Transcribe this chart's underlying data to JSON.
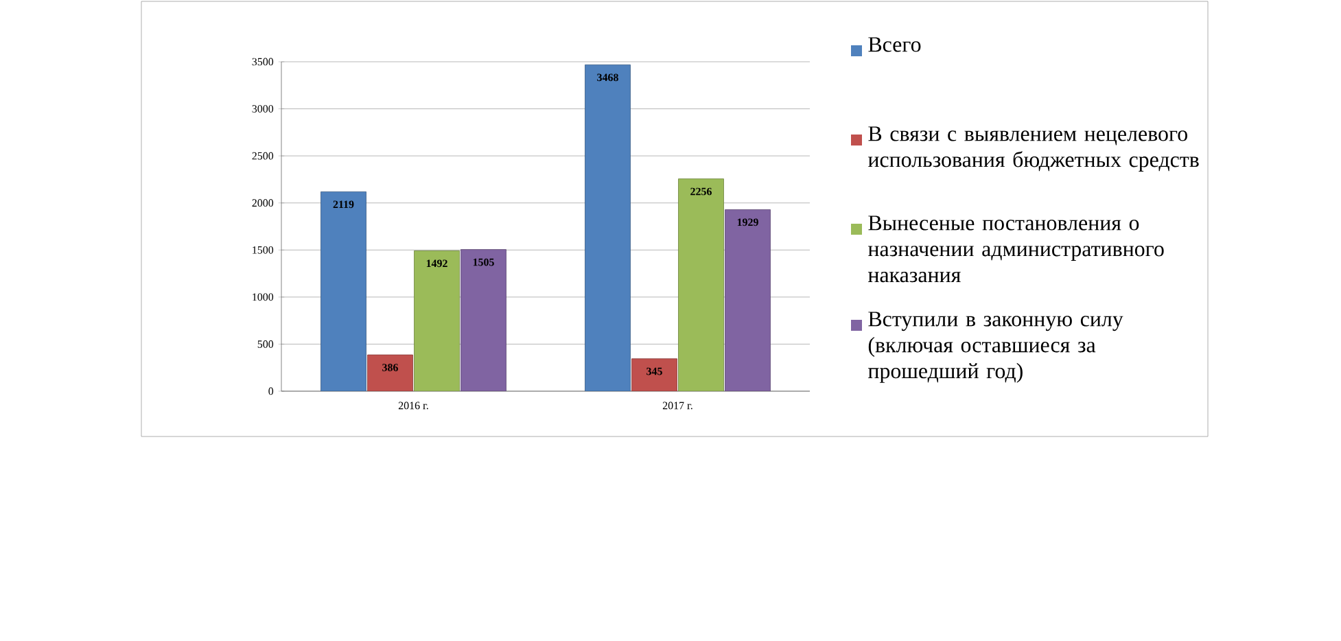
{
  "chart_data": {
    "type": "bar",
    "categories": [
      "2016 г.",
      "2017 г."
    ],
    "series": [
      {
        "name": "Всего",
        "color": "#4f81bd",
        "values": [
          2119,
          3468
        ]
      },
      {
        "name": "В связи с выявлением нецелевого использования бюджетных средств",
        "color": "#c0504d",
        "values": [
          386,
          345
        ]
      },
      {
        "name": "Вынесеные постановления о назначении административного наказания",
        "color": "#9bbb59",
        "values": [
          1492,
          2256
        ]
      },
      {
        "name": "Вступили в законную силу (включая оставшиеся за прошедший год)",
        "color": "#8064a2",
        "values": [
          1505,
          1929
        ]
      }
    ],
    "ylim": [
      0,
      3500
    ],
    "yticks": [
      0,
      500,
      1000,
      1500,
      2000,
      2500,
      3000,
      3500
    ],
    "grid": "y",
    "legend": "right",
    "data_labels": true
  }
}
